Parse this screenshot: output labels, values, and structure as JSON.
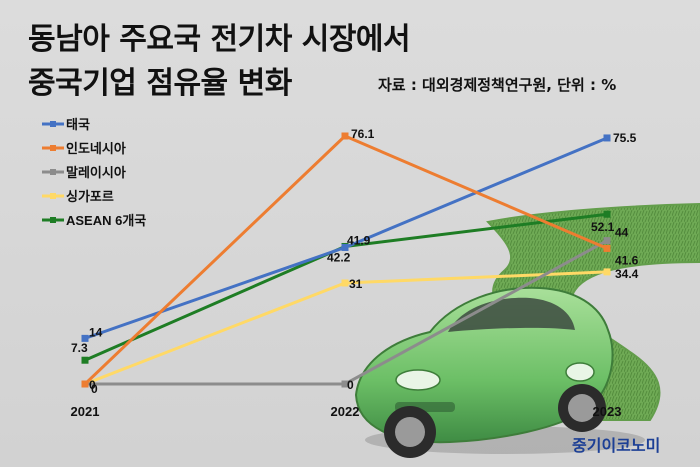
{
  "title_line1": "동남아 주요국 전기차 시장에서",
  "title_line2": "중국기업 점유율 변화",
  "source_note": "자료 : 대외경제정책연구원, 단위 : %",
  "brand": "중기이코노미",
  "chart_data": {
    "type": "line",
    "title": "동남아 주요국 전기차 시장에서 중국기업 점유율 변화",
    "xlabel": "",
    "ylabel": "",
    "unit": "%",
    "categories": [
      "2021",
      "2022",
      "2023"
    ],
    "ylim": [
      0,
      80
    ],
    "grid": false,
    "legend_position": "top-left",
    "series": [
      {
        "name": "태국",
        "color": "#4472c4",
        "values": [
          14,
          41.9,
          75.5
        ],
        "labels": [
          "14",
          "41.9",
          "75.5"
        ]
      },
      {
        "name": "인도네시아",
        "color": "#ed7d31",
        "values": [
          0,
          76.1,
          41.6
        ],
        "labels": [
          "0",
          "76.1",
          "41.6"
        ]
      },
      {
        "name": "말레이시아",
        "color": "#8c8c8c",
        "values": [
          0,
          0,
          44
        ],
        "labels": [
          "0",
          "0",
          "44"
        ]
      },
      {
        "name": "싱가포르",
        "color": "#ffd966",
        "values": [
          0,
          31,
          34.4
        ],
        "labels": [
          "",
          "31",
          "34.4"
        ]
      },
      {
        "name": "ASEAN 6개국",
        "color": "#1e7d24",
        "values": [
          7.3,
          42.2,
          52.1
        ],
        "labels": [
          "7.3",
          "42.2",
          "52.1"
        ]
      }
    ]
  }
}
